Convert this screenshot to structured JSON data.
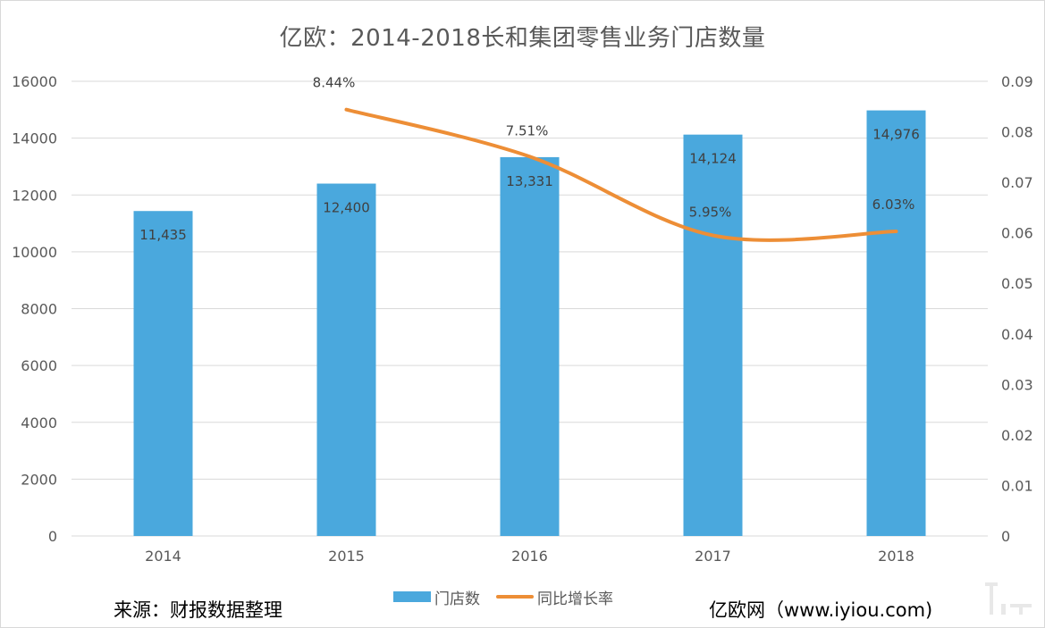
{
  "title": "亿欧：2014-2018长和集团零售业务门店数量",
  "source_note": "来源：财报数据整理",
  "site_note": "亿欧网（www.iyiou.com)",
  "watermark_icon": "yiou-logo-watermark",
  "colors": {
    "bar": "#4aa8dd",
    "line": "#ed8e36",
    "grid": "#d9d9d9",
    "text": "#595959"
  },
  "chart_data": {
    "type": "bar",
    "title": "亿欧：2014-2018长和集团零售业务门店数量",
    "categories": [
      "2014",
      "2015",
      "2016",
      "2017",
      "2018"
    ],
    "y_left": {
      "range": [
        0,
        16000
      ],
      "ticks": [
        "0",
        "2000",
        "4000",
        "6000",
        "8000",
        "10000",
        "12000",
        "14000",
        "16000"
      ]
    },
    "y_right": {
      "range": [
        0,
        0.09
      ],
      "ticks": [
        "0",
        "0.01",
        "0.02",
        "0.03",
        "0.04",
        "0.05",
        "0.06",
        "0.07",
        "0.08",
        "0.09"
      ]
    },
    "grid": true,
    "legend_position": "bottom",
    "series": [
      {
        "name": "门店数",
        "type": "bar",
        "axis": "left",
        "values": [
          11435,
          12400,
          13331,
          14124,
          14976
        ],
        "labels": [
          "11,435",
          "12,400",
          "13,331",
          "14,124",
          "14,976"
        ]
      },
      {
        "name": "同比增长率",
        "type": "line",
        "axis": "right",
        "smooth": true,
        "values": [
          null,
          0.0844,
          0.0751,
          0.0595,
          0.0603
        ],
        "labels": [
          "",
          "8.44%",
          "7.51%",
          "5.95%",
          "6.03%"
        ]
      }
    ]
  }
}
